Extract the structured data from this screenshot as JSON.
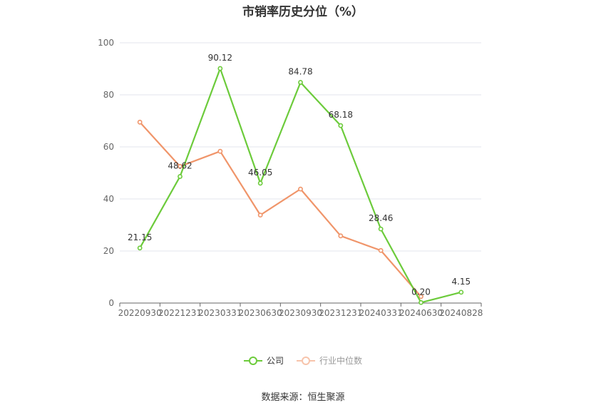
{
  "chart_data": {
    "type": "line",
    "title": "市销率历史分位（%）",
    "categories": [
      "20220930",
      "20221231",
      "20230331",
      "20230630",
      "20230930",
      "20231231",
      "20240331",
      "20240630",
      "20240828"
    ],
    "ylim": [
      0,
      100
    ],
    "yticks": [
      0,
      20,
      40,
      60,
      80,
      100
    ],
    "grid": true,
    "legend_position": "bottom",
    "series": [
      {
        "name": "公司",
        "color": "#6ccb3b",
        "values": [
          21.15,
          48.62,
          90.12,
          46.05,
          84.78,
          68.18,
          28.46,
          0.2,
          4.15
        ],
        "labels": [
          "21.15",
          "48.62",
          "90.12",
          "46.05",
          "84.78",
          "68.18",
          "28.46",
          "0.20",
          "4.15"
        ]
      },
      {
        "name": "行业中位数",
        "color": "#f0956a",
        "values": [
          69.5,
          52.5,
          58.3,
          33.8,
          43.8,
          25.8,
          20.2,
          2.5,
          null
        ]
      }
    ],
    "source": "数据来源：恒生聚源"
  }
}
